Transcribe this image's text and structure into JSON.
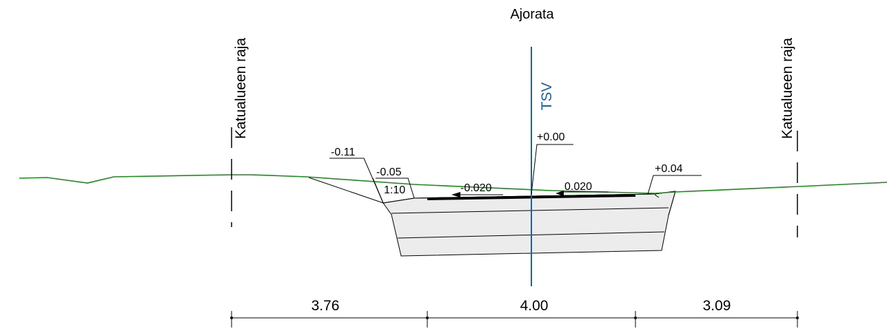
{
  "title": "Ajorata",
  "centerline_label": "TSV",
  "boundary_left_label": "Katualueen raja",
  "boundary_right_label": "Katualueen raja",
  "elevations": {
    "left_outer": "-0.11",
    "left_inner": "-0.05",
    "center": "+0.00",
    "right": "+0.04"
  },
  "slope_ratio": "1:10",
  "cross_slopes": {
    "left": "-0.020",
    "right": "0.020"
  },
  "dimensions": {
    "left": "3.76",
    "center": "4.00",
    "right": "3.09"
  },
  "colors": {
    "ground_line": "#1a8a1a",
    "centerline": "#1f5f9a",
    "fill": "#ececec",
    "ink": "#000000"
  }
}
